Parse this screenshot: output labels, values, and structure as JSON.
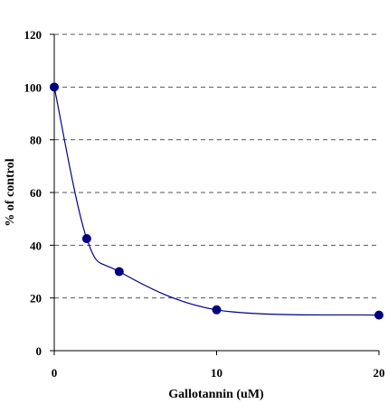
{
  "chart_data": {
    "type": "line",
    "title": "",
    "xlabel": "Gallotannin (uM)",
    "ylabel": "% of control",
    "xlim": [
      0,
      20
    ],
    "ylim": [
      0,
      120
    ],
    "x_ticks": [
      "0",
      "10",
      "20"
    ],
    "y_ticks": [
      "0",
      "20",
      "40",
      "60",
      "80",
      "100",
      "120"
    ],
    "grid": "horizontal dashed",
    "series": [
      {
        "x": [
          0,
          2,
          4,
          10,
          20
        ],
        "y": [
          100,
          42.5,
          30,
          15.5,
          13.5
        ],
        "marker": "circle",
        "line": "smooth",
        "color": "#000080"
      }
    ]
  }
}
